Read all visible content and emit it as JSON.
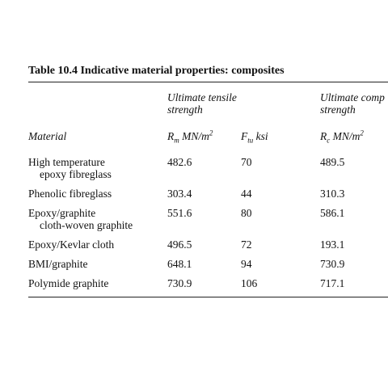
{
  "title": "Table 10.4 Indicative material properties: composites",
  "groups": [
    [
      "Ultimate tensile",
      "strength"
    ],
    [
      "Ultimate comp",
      "strength"
    ]
  ],
  "headers": [
    {
      "text": "Material"
    },
    {
      "base": "R",
      "sub": "m",
      "unit": "MN/m",
      "sup": "2"
    },
    {
      "base": "F",
      "sub": "tu",
      "unit": "ksi"
    },
    {
      "base": "R",
      "sub": "c",
      "unit": "MN/m",
      "sup": "2"
    }
  ],
  "rows": [
    [
      [
        "High temperature",
        "epoxy fibreglass"
      ],
      "482.6",
      "70",
      "489.5"
    ],
    [
      [
        "Phenolic fibreglass"
      ],
      "303.4",
      "44",
      "310.3"
    ],
    [
      [
        "Epoxy/graphite",
        "cloth-woven graphite"
      ],
      "551.6",
      "80",
      "586.1"
    ],
    [
      [
        "Epoxy/Kevlar cloth"
      ],
      "496.5",
      "72",
      "193.1"
    ],
    [
      [
        "BMI/graphite"
      ],
      "648.1",
      "94",
      "730.9"
    ],
    [
      [
        "Polymide graphite"
      ],
      "730.9",
      "106",
      "717.1"
    ]
  ]
}
